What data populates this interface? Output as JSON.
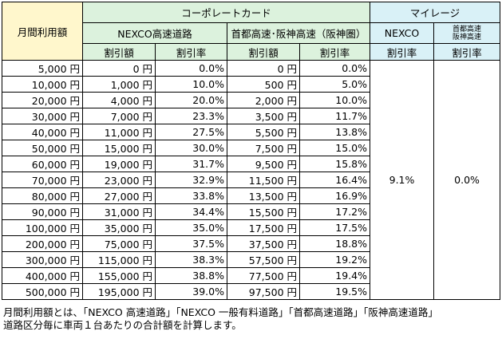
{
  "header": {
    "usage_label": "月間利用額",
    "corporate_card": "コーポレートカード",
    "mileage": "マイレージ",
    "nexco_highway": "NEXCO高速道路",
    "metro_hanshin": "首都高速･阪神高速（阪神圏）",
    "nexco": "NEXCO",
    "metro_hanshin_small_1": "首都高速",
    "metro_hanshin_small_2": "阪神高速",
    "discount_amount": "割引額",
    "discount_rate": "割引率"
  },
  "rows": [
    {
      "usage": "5,000 円",
      "nexco_amt": "0 円",
      "nexco_rate": "0.0%",
      "metro_amt": "0 円",
      "metro_rate": "0.0%"
    },
    {
      "usage": "10,000 円",
      "nexco_amt": "1,000 円",
      "nexco_rate": "10.0%",
      "metro_amt": "500 円",
      "metro_rate": "5.0%"
    },
    {
      "usage": "20,000 円",
      "nexco_amt": "4,000 円",
      "nexco_rate": "20.0%",
      "metro_amt": "2,000 円",
      "metro_rate": "10.0%"
    },
    {
      "usage": "30,000 円",
      "nexco_amt": "7,000 円",
      "nexco_rate": "23.3%",
      "metro_amt": "3,500 円",
      "metro_rate": "11.7%"
    },
    {
      "usage": "40,000 円",
      "nexco_amt": "11,000 円",
      "nexco_rate": "27.5%",
      "metro_amt": "5,500 円",
      "metro_rate": "13.8%"
    },
    {
      "usage": "50,000 円",
      "nexco_amt": "15,000 円",
      "nexco_rate": "30.0%",
      "metro_amt": "7,500 円",
      "metro_rate": "15.0%"
    },
    {
      "usage": "60,000 円",
      "nexco_amt": "19,000 円",
      "nexco_rate": "31.7%",
      "metro_amt": "9,500 円",
      "metro_rate": "15.8%"
    },
    {
      "usage": "70,000 円",
      "nexco_amt": "23,000 円",
      "nexco_rate": "32.9%",
      "metro_amt": "11,500 円",
      "metro_rate": "16.4%"
    },
    {
      "usage": "80,000 円",
      "nexco_amt": "27,000 円",
      "nexco_rate": "33.8%",
      "metro_amt": "13,500 円",
      "metro_rate": "16.9%"
    },
    {
      "usage": "90,000 円",
      "nexco_amt": "31,000 円",
      "nexco_rate": "34.4%",
      "metro_amt": "15,500 円",
      "metro_rate": "17.2%"
    },
    {
      "usage": "100,000 円",
      "nexco_amt": "35,000 円",
      "nexco_rate": "35.0%",
      "metro_amt": "17,500 円",
      "metro_rate": "17.5%"
    },
    {
      "usage": "200,000 円",
      "nexco_amt": "75,000 円",
      "nexco_rate": "37.5%",
      "metro_amt": "37,500 円",
      "metro_rate": "18.8%"
    },
    {
      "usage": "300,000 円",
      "nexco_amt": "115,000 円",
      "nexco_rate": "38.3%",
      "metro_amt": "57,500 円",
      "metro_rate": "19.2%"
    },
    {
      "usage": "400,000 円",
      "nexco_amt": "155,000 円",
      "nexco_rate": "38.8%",
      "metro_amt": "77,500 円",
      "metro_rate": "19.4%"
    },
    {
      "usage": "500,000 円",
      "nexco_amt": "195,000 円",
      "nexco_rate": "39.0%",
      "metro_amt": "97,500 円",
      "metro_rate": "19.5%"
    }
  ],
  "mileage_rates": {
    "nexco": "9.1%",
    "metro_hanshin": "0.0%"
  },
  "notes": {
    "line1": "月間利用額とは、「NEXCO 高速道路」「NEXCO 一般有料道路」「首都高速道路」「阪神高速道路」",
    "line2": "道路区分毎に車両１台あたりの合計額を計算します。"
  }
}
